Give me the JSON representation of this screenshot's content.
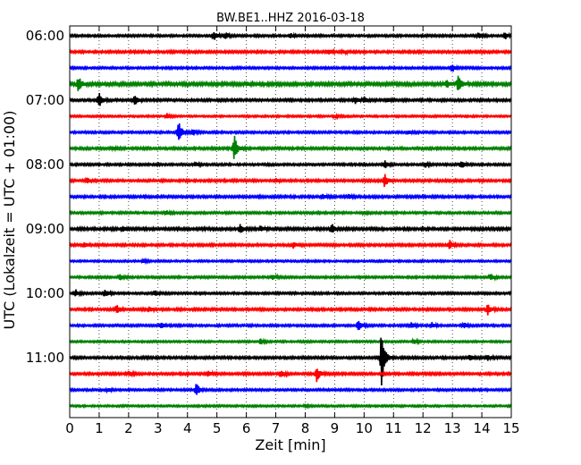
{
  "chart_data": {
    "type": "line",
    "subtype": "seismic-dayplot",
    "title": "BW.BE1..HHZ 2016-03-18",
    "xlabel": "Zeit  [min]",
    "ylabel": "UTC (Lokalzeit = UTC + 01:00)",
    "xlim": [
      0,
      15
    ],
    "x_ticks": [
      "0",
      "1",
      "2",
      "3",
      "4",
      "5",
      "6",
      "7",
      "8",
      "9",
      "10",
      "11",
      "12",
      "13",
      "14",
      "15"
    ],
    "y_ticks": [
      {
        "label": "06:00",
        "trace_index": 0
      },
      {
        "label": "07:00",
        "trace_index": 4
      },
      {
        "label": "08:00",
        "trace_index": 8
      },
      {
        "label": "09:00",
        "trace_index": 12
      },
      {
        "label": "10:00",
        "trace_index": 16
      },
      {
        "label": "11:00",
        "trace_index": 20
      }
    ],
    "trace_interval_minutes": 15,
    "color_cycle": [
      "#000000",
      "#ff0000",
      "#0000ff",
      "#008000"
    ],
    "grid": "vertical-dotted",
    "traces": [
      {
        "start": "06:00",
        "noise": 0.8,
        "events": [
          {
            "t": 4.9,
            "a": 5
          },
          {
            "t": 5.3,
            "a": 4
          },
          {
            "t": 7.5,
            "a": 3
          },
          {
            "t": 13.9,
            "a": 3
          },
          {
            "t": 14.8,
            "a": 4
          }
        ]
      },
      {
        "start": "06:15",
        "noise": 0.9,
        "events": [
          {
            "t": 8.8,
            "a": 3
          },
          {
            "t": 9.3,
            "a": 2
          }
        ]
      },
      {
        "start": "06:30",
        "noise": 0.8,
        "events": [
          {
            "t": 13.0,
            "a": 5
          }
        ]
      },
      {
        "start": "06:45",
        "noise": 1.2,
        "events": [
          {
            "t": 0.3,
            "a": 9
          },
          {
            "t": 6.0,
            "a": 2
          },
          {
            "t": 13.2,
            "a": 9
          },
          {
            "t": 12.8,
            "a": 4
          }
        ]
      },
      {
        "start": "07:00",
        "noise": 0.9,
        "events": [
          {
            "t": 1.0,
            "a": 8
          },
          {
            "t": 2.2,
            "a": 6
          },
          {
            "t": 9.7,
            "a": 4
          },
          {
            "t": 10.0,
            "a": 4
          },
          {
            "t": 10.8,
            "a": 2
          }
        ]
      },
      {
        "start": "07:15",
        "noise": 0.7,
        "events": [
          {
            "t": 3.3,
            "a": 3
          },
          {
            "t": 9.0,
            "a": 2
          }
        ]
      },
      {
        "start": "07:30",
        "noise": 0.8,
        "events": [
          {
            "t": 3.7,
            "a": 14
          },
          {
            "t": 4.2,
            "a": 3
          },
          {
            "t": 11.5,
            "a": 2
          }
        ]
      },
      {
        "start": "07:45",
        "noise": 0.9,
        "events": [
          {
            "t": 5.6,
            "a": 16
          },
          {
            "t": 1.5,
            "a": 2
          }
        ]
      },
      {
        "start": "08:00",
        "noise": 0.8,
        "events": [
          {
            "t": 10.7,
            "a": 5
          },
          {
            "t": 12.1,
            "a": 3
          },
          {
            "t": 13.3,
            "a": 5
          },
          {
            "t": 4.3,
            "a": 2
          }
        ]
      },
      {
        "start": "08:15",
        "noise": 0.9,
        "events": [
          {
            "t": 10.7,
            "a": 8
          },
          {
            "t": 0.6,
            "a": 3
          },
          {
            "t": 7.0,
            "a": 2
          }
        ]
      },
      {
        "start": "08:30",
        "noise": 0.9,
        "events": [
          {
            "t": 8.6,
            "a": 3
          },
          {
            "t": 9.5,
            "a": 2
          }
        ]
      },
      {
        "start": "08:45",
        "noise": 0.8,
        "events": [
          {
            "t": 3.3,
            "a": 2
          },
          {
            "t": 10.0,
            "a": 2
          }
        ]
      },
      {
        "start": "09:00",
        "noise": 1.0,
        "events": [
          {
            "t": 1.8,
            "a": 3
          },
          {
            "t": 5.8,
            "a": 5
          },
          {
            "t": 6.5,
            "a": 3
          },
          {
            "t": 8.9,
            "a": 6
          }
        ]
      },
      {
        "start": "09:15",
        "noise": 0.9,
        "events": [
          {
            "t": 0.5,
            "a": 3
          },
          {
            "t": 7.6,
            "a": 4
          },
          {
            "t": 12.9,
            "a": 6
          }
        ]
      },
      {
        "start": "09:30",
        "noise": 0.7,
        "events": [
          {
            "t": 2.5,
            "a": 2
          }
        ]
      },
      {
        "start": "09:45",
        "noise": 0.8,
        "events": [
          {
            "t": 1.7,
            "a": 4
          },
          {
            "t": 6.9,
            "a": 3
          },
          {
            "t": 14.3,
            "a": 4
          }
        ]
      },
      {
        "start": "10:00",
        "noise": 0.8,
        "events": [
          {
            "t": 0.2,
            "a": 4
          },
          {
            "t": 1.2,
            "a": 5
          },
          {
            "t": 2.9,
            "a": 3
          }
        ]
      },
      {
        "start": "10:15",
        "noise": 0.9,
        "events": [
          {
            "t": 1.6,
            "a": 6
          },
          {
            "t": 2.7,
            "a": 3
          },
          {
            "t": 14.2,
            "a": 6
          }
        ]
      },
      {
        "start": "10:30",
        "noise": 0.8,
        "events": [
          {
            "t": 3.1,
            "a": 4
          },
          {
            "t": 9.8,
            "a": 8
          },
          {
            "t": 11.6,
            "a": 4
          },
          {
            "t": 12.3,
            "a": 3
          },
          {
            "t": 13.4,
            "a": 3
          }
        ]
      },
      {
        "start": "10:45",
        "noise": 0.7,
        "events": [
          {
            "t": 6.5,
            "a": 3
          },
          {
            "t": 11.7,
            "a": 3
          }
        ]
      },
      {
        "start": "11:00",
        "noise": 0.9,
        "events": [
          {
            "t": 10.6,
            "a": 34
          },
          {
            "t": 13.6,
            "a": 4
          },
          {
            "t": 14.2,
            "a": 3
          }
        ]
      },
      {
        "start": "11:15",
        "noise": 0.9,
        "events": [
          {
            "t": 2.0,
            "a": 3
          },
          {
            "t": 4.7,
            "a": 3
          },
          {
            "t": 7.2,
            "a": 4
          },
          {
            "t": 8.4,
            "a": 9
          }
        ]
      },
      {
        "start": "11:30",
        "noise": 0.8,
        "events": [
          {
            "t": 4.3,
            "a": 8
          },
          {
            "t": 1.3,
            "a": 2
          }
        ]
      },
      {
        "start": "11:45",
        "noise": 0.7,
        "events": [
          {
            "t": 8.0,
            "a": 2
          }
        ]
      }
    ]
  }
}
